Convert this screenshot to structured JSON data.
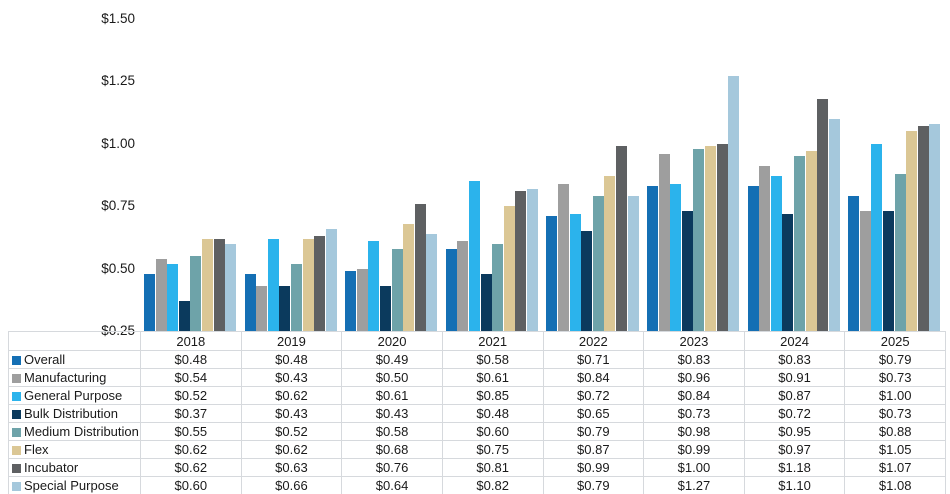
{
  "chart_data": {
    "type": "bar",
    "title": "",
    "xlabel": "",
    "ylabel": "",
    "grid": false,
    "legend_position": "table-left-column",
    "categories": [
      "2018",
      "2019",
      "2020",
      "2021",
      "2022",
      "2023",
      "2024",
      "2025"
    ],
    "series": [
      {
        "name": "Overall",
        "color": "#146FB4",
        "values": [
          0.48,
          0.48,
          0.49,
          0.58,
          0.71,
          0.83,
          0.83,
          0.79
        ]
      },
      {
        "name": "Manufacturing",
        "color": "#9E9E9E",
        "values": [
          0.54,
          0.43,
          0.5,
          0.61,
          0.84,
          0.96,
          0.91,
          0.73
        ]
      },
      {
        "name": "General Purpose",
        "color": "#2BB3EC",
        "values": [
          0.52,
          0.62,
          0.61,
          0.85,
          0.72,
          0.84,
          0.87,
          1.0
        ]
      },
      {
        "name": "Bulk Distribution",
        "color": "#0B3A5D",
        "values": [
          0.37,
          0.43,
          0.43,
          0.48,
          0.65,
          0.73,
          0.72,
          0.73
        ]
      },
      {
        "name": "Medium Distribution",
        "color": "#6EA3A9",
        "values": [
          0.55,
          0.52,
          0.58,
          0.6,
          0.79,
          0.98,
          0.95,
          0.88
        ]
      },
      {
        "name": "Flex",
        "color": "#DBC795",
        "values": [
          0.62,
          0.62,
          0.68,
          0.75,
          0.87,
          0.99,
          0.97,
          1.05
        ]
      },
      {
        "name": "Incubator",
        "color": "#5E6062",
        "values": [
          0.62,
          0.63,
          0.76,
          0.81,
          0.99,
          1.0,
          1.18,
          1.07
        ]
      },
      {
        "name": "Special Purpose",
        "color": "#A5C8DC",
        "values": [
          0.6,
          0.66,
          0.64,
          0.82,
          0.79,
          1.27,
          1.1,
          1.08
        ]
      }
    ],
    "y_axis": {
      "min": 0.25,
      "max": 1.5,
      "tick_values": [
        1.5,
        1.25,
        1.0,
        0.75,
        0.5,
        0.25
      ],
      "tick_labels": [
        "$1.50",
        "$1.25",
        "$1.00",
        "$0.75",
        "$0.50",
        "$0.25"
      ]
    },
    "value_prefix": "$"
  }
}
